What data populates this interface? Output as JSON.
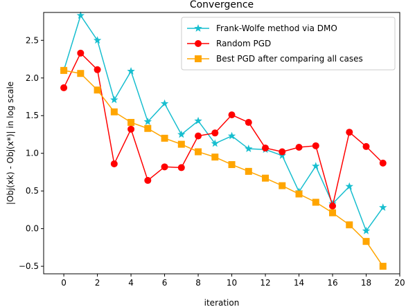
{
  "chart_data": {
    "type": "line",
    "title": "Convergence",
    "xlabel": "iteration",
    "ylabel": "|Obj(xk) - Obj(x*)| in log scale",
    "xlim": [
      -1.2,
      20
    ],
    "ylim": [
      -0.6,
      2.87
    ],
    "xticks": [
      0,
      2,
      4,
      6,
      8,
      10,
      12,
      14,
      16,
      18,
      20
    ],
    "yticks": [
      -0.5,
      0.0,
      0.5,
      1.0,
      1.5,
      2.0,
      2.5
    ],
    "ytick_labels": [
      "−0.5",
      "0.0",
      "0.5",
      "1.0",
      "1.5",
      "2.0",
      "2.5"
    ],
    "grid": false,
    "legend_position": "top-right",
    "x": [
      0,
      1,
      2,
      3,
      4,
      5,
      6,
      7,
      8,
      9,
      10,
      11,
      12,
      13,
      14,
      15,
      16,
      17,
      18,
      19
    ],
    "series": [
      {
        "name": "Frank-Wolfe method via DMO",
        "color": "#17becf",
        "marker": "star",
        "values": [
          2.1,
          2.83,
          2.5,
          1.71,
          2.09,
          1.42,
          1.66,
          1.25,
          1.43,
          1.13,
          1.23,
          1.06,
          1.05,
          0.97,
          0.49,
          0.83,
          0.33,
          0.56,
          -0.03,
          0.28
        ]
      },
      {
        "name": "Random PGD",
        "color": "#ff0000",
        "marker": "circle",
        "values": [
          1.87,
          2.33,
          2.11,
          0.86,
          1.32,
          0.64,
          0.82,
          0.81,
          1.23,
          1.27,
          1.51,
          1.41,
          1.07,
          1.02,
          1.08,
          1.1,
          0.3,
          1.28,
          1.09,
          0.87
        ]
      },
      {
        "name": "Best PGD after comparing all cases",
        "color": "#ffa500",
        "marker": "square",
        "values": [
          2.1,
          2.06,
          1.84,
          1.55,
          1.41,
          1.33,
          1.2,
          1.12,
          1.02,
          0.95,
          0.85,
          0.76,
          0.67,
          0.57,
          0.46,
          0.35,
          0.21,
          0.05,
          -0.17,
          -0.5
        ]
      }
    ]
  }
}
